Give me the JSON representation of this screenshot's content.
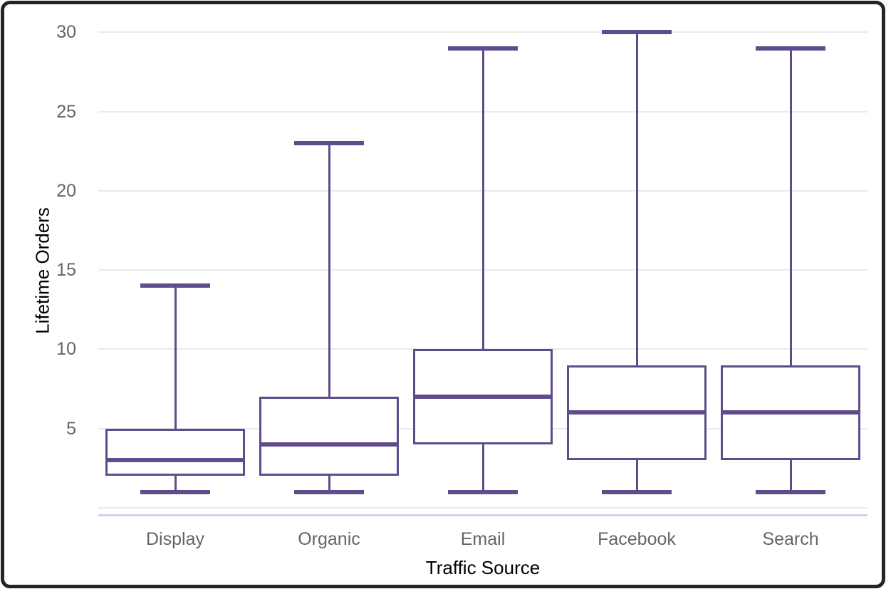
{
  "chart_data": {
    "type": "box",
    "title": "",
    "xlabel": "Traffic Source",
    "ylabel": "Lifetime Orders",
    "categories": [
      "Display",
      "Organic",
      "Email",
      "Facebook",
      "Search"
    ],
    "series": [
      {
        "name": "Display",
        "min": 1,
        "q1": 2,
        "median": 3,
        "q3": 5,
        "max": 14
      },
      {
        "name": "Organic",
        "min": 1,
        "q1": 2,
        "median": 4,
        "q3": 7,
        "max": 23
      },
      {
        "name": "Email",
        "min": 1,
        "q1": 4,
        "median": 7,
        "q3": 10,
        "max": 29
      },
      {
        "name": "Facebook",
        "min": 1,
        "q1": 3,
        "median": 6,
        "q3": 9,
        "max": 30
      },
      {
        "name": "Search",
        "min": 1,
        "q1": 3,
        "median": 6,
        "q3": 9,
        "max": 29
      }
    ],
    "y_ticks": [
      5,
      10,
      15,
      20,
      25,
      30
    ],
    "ylim": [
      0,
      31
    ],
    "grid": true,
    "legend": "none",
    "colors": {
      "box_stroke": "#5f4c8b",
      "box_fill": "#ffffff",
      "gridline": "#eaeaea",
      "zero_line": "#eaeaea",
      "x_axis_line": "#c8d4e3",
      "text": "#656565",
      "frame": "#212629",
      "background": "#ffffff"
    }
  }
}
